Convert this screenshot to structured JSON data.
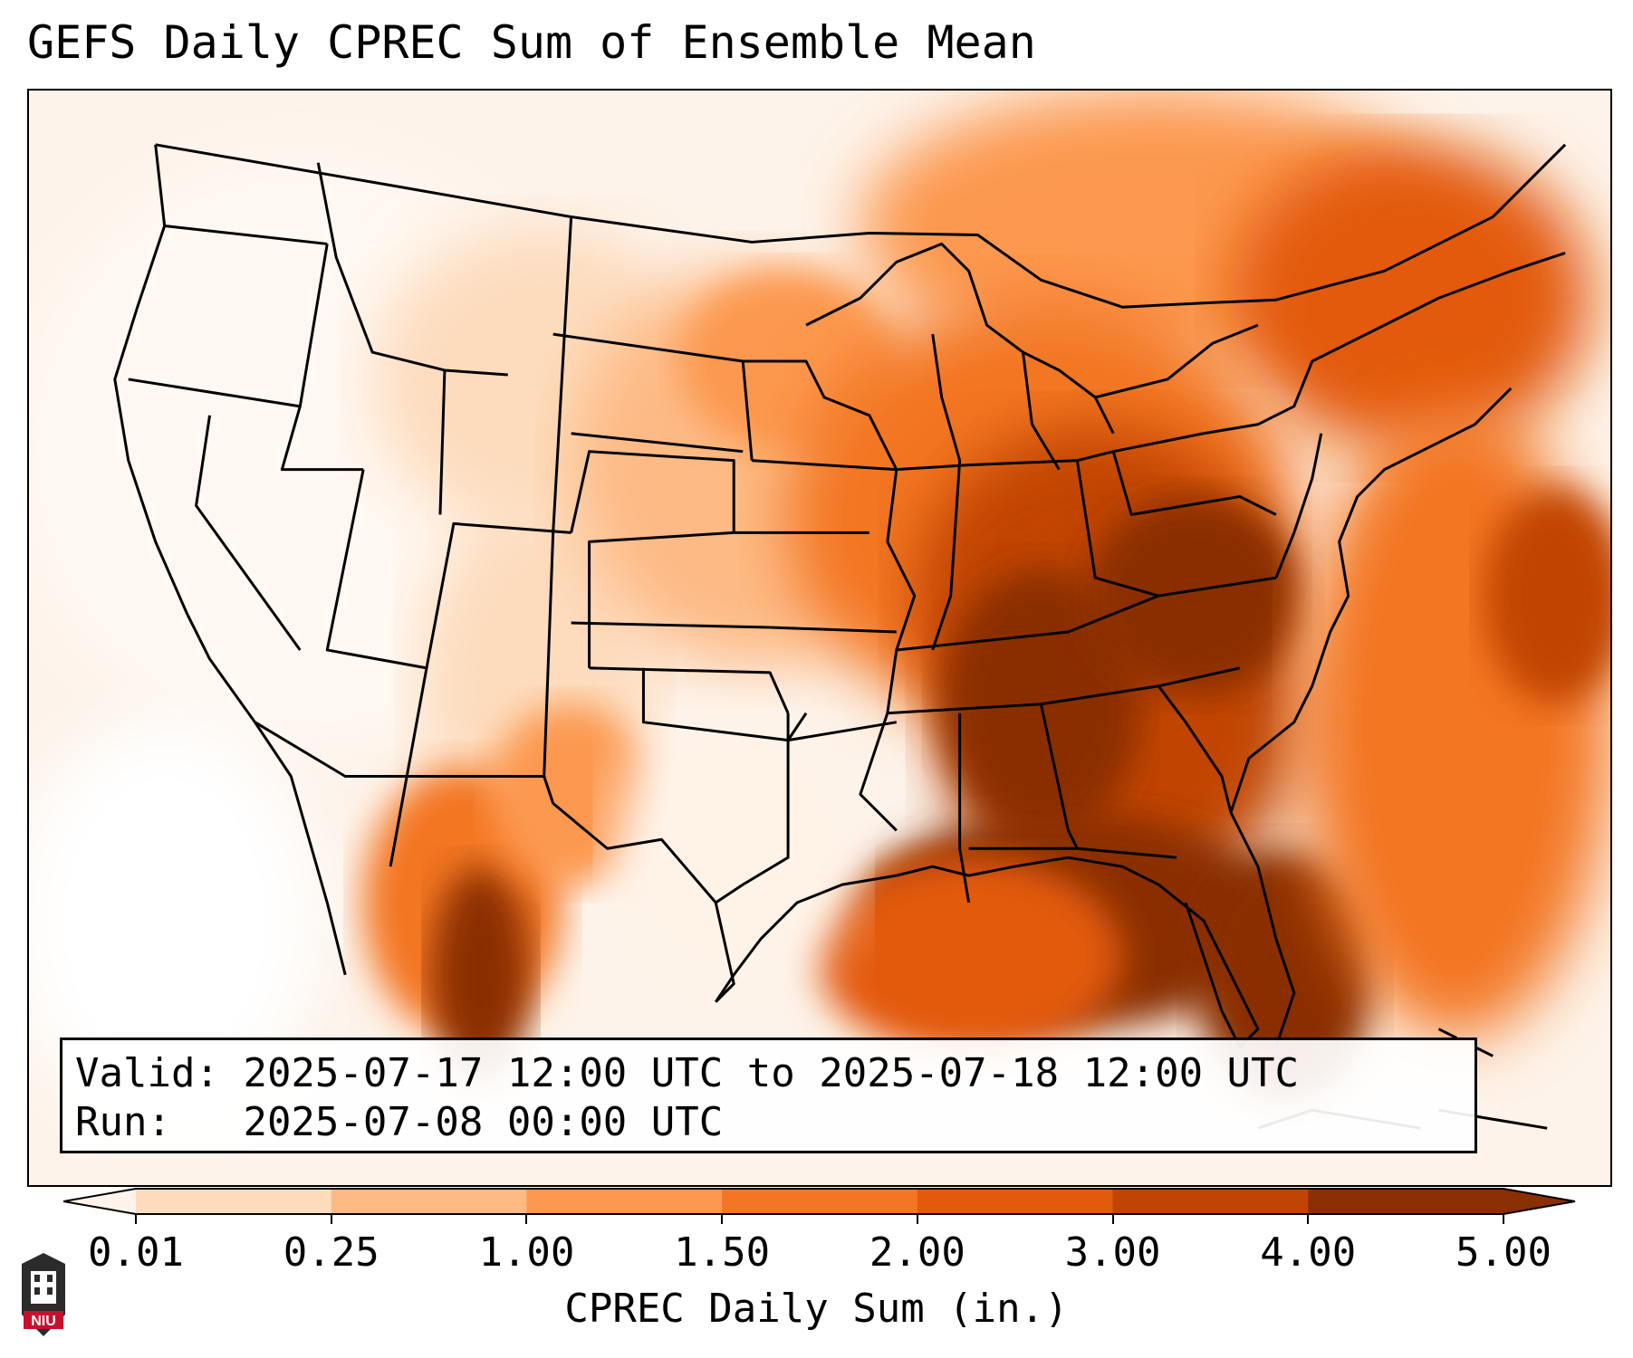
{
  "title": "GEFS Daily CPREC Sum of Ensemble Mean",
  "info": {
    "valid_label": "Valid:",
    "valid_value": "2025-07-17 12:00 UTC to 2025-07-18 12:00 UTC",
    "run_label": "Run:",
    "run_value": "2025-07-08 00:00 UTC"
  },
  "colorbar": {
    "label": "CPREC Daily Sum (in.)",
    "ticks": [
      "0.01",
      "0.25",
      "1.00",
      "1.50",
      "2.00",
      "3.00",
      "4.00",
      "5.00"
    ],
    "colors": [
      "#fdf3ea",
      "#fddcbd",
      "#fdba85",
      "#fc9850",
      "#f37624",
      "#e35a0c",
      "#c14405",
      "#8a2f04"
    ],
    "extend": "both"
  },
  "map": {
    "projection": "lambert-conformal",
    "region": "CONUS",
    "features": [
      "state-borders",
      "coastlines",
      "international-borders"
    ]
  },
  "logo": {
    "text": "NIU",
    "color": "#c8102e"
  }
}
